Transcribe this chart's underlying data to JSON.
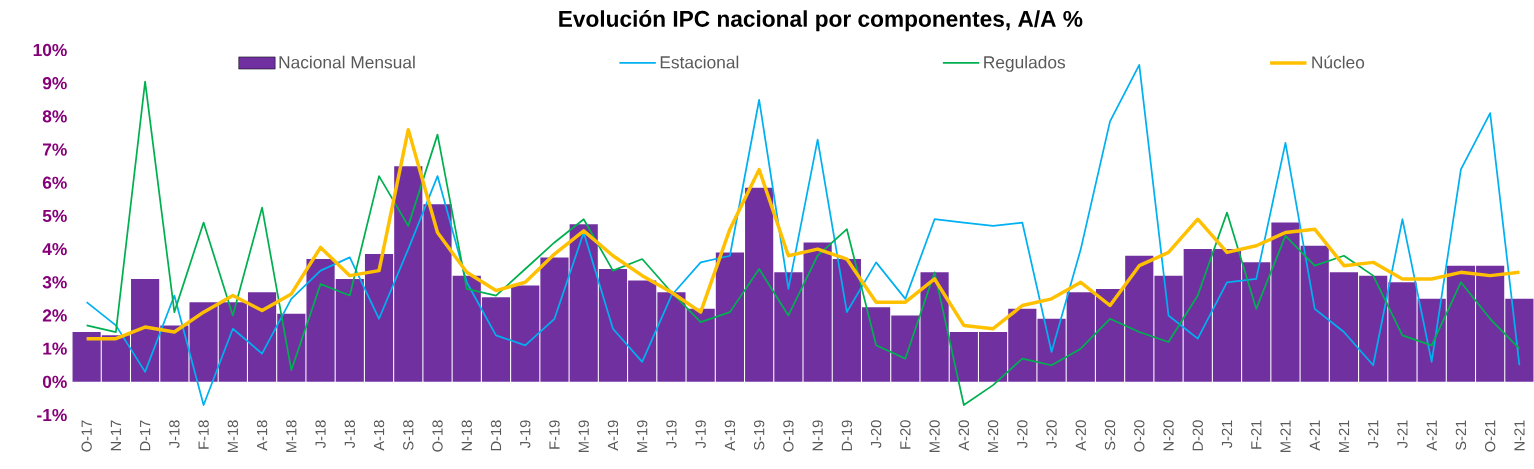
{
  "chart_data": {
    "type": "bar",
    "title": "Evolución IPC nacional por componentes, A/A %",
    "categories": [
      "O-17",
      "N-17",
      "D-17",
      "J-18",
      "F-18",
      "M-18",
      "A-18",
      "M-18",
      "J-18",
      "J-18",
      "A-18",
      "S-18",
      "O-18",
      "N-18",
      "D-18",
      "J-19",
      "F-19",
      "M-19",
      "A-19",
      "M-19",
      "J-19",
      "J-19",
      "A-19",
      "S-19",
      "O-19",
      "N-19",
      "D-19",
      "J-20",
      "F-20",
      "M-20",
      "A-20",
      "M-20",
      "J-20",
      "J-20",
      "A-20",
      "S-20",
      "O-20",
      "N-20",
      "D-20",
      "J-21",
      "F-21",
      "M-21",
      "A-21",
      "M-21",
      "J-21",
      "J-21",
      "A-21",
      "S-21",
      "O-21",
      "N-21"
    ],
    "series": [
      {
        "name": "Nacional Mensual",
        "color": "#7030a0",
        "values": [
          1.5,
          1.4,
          3.1,
          1.7,
          2.4,
          2.4,
          2.7,
          2.05,
          3.7,
          3.1,
          3.85,
          6.5,
          5.35,
          3.2,
          2.55,
          2.9,
          3.75,
          4.75,
          3.4,
          3.05,
          2.7,
          2.2,
          3.9,
          5.85,
          3.3,
          4.2,
          3.7,
          2.25,
          2.0,
          3.3,
          1.5,
          1.5,
          2.2,
          1.9,
          2.7,
          2.8,
          3.8,
          3.2,
          4.0,
          4.0,
          3.6,
          4.8,
          4.1,
          3.3,
          3.2,
          3.0,
          2.5,
          3.5,
          3.5,
          2.5
        ]
      },
      {
        "name": "Estacional",
        "type": "line",
        "color": "#00b0f0",
        "values": [
          2.4,
          1.7,
          0.3,
          2.6,
          -0.7,
          1.6,
          0.85,
          2.5,
          3.35,
          3.75,
          1.9,
          4.0,
          6.2,
          3.0,
          1.4,
          1.1,
          1.9,
          4.5,
          1.6,
          0.6,
          2.6,
          3.6,
          3.8,
          8.5,
          2.8,
          7.3,
          2.1,
          3.6,
          2.5,
          4.9,
          4.8,
          4.7,
          4.8,
          0.9,
          4.0,
          7.85,
          9.55,
          2.0,
          1.3,
          3.0,
          3.1,
          7.2,
          2.2,
          1.5,
          0.5,
          4.9,
          0.6,
          6.4,
          8.1,
          0.5
        ]
      },
      {
        "name": "Regulados",
        "type": "line",
        "color": "#00b050",
        "values": [
          1.7,
          1.5,
          9.05,
          2.1,
          4.8,
          2.0,
          5.25,
          0.35,
          2.95,
          2.6,
          6.2,
          4.7,
          7.45,
          2.8,
          2.6,
          3.4,
          4.2,
          4.9,
          3.35,
          3.7,
          2.7,
          1.8,
          2.1,
          3.4,
          2.0,
          3.8,
          4.6,
          1.1,
          0.7,
          3.3,
          -0.7,
          -0.1,
          0.7,
          0.5,
          1.0,
          1.9,
          1.5,
          1.2,
          2.6,
          5.1,
          2.2,
          4.4,
          3.5,
          3.8,
          3.2,
          1.4,
          1.1,
          3.0,
          1.9,
          1.0
        ]
      },
      {
        "name": "Núcleo",
        "type": "line",
        "color": "#ffc000",
        "values": [
          1.3,
          1.3,
          1.65,
          1.5,
          2.1,
          2.6,
          2.15,
          2.65,
          4.05,
          3.2,
          3.35,
          7.6,
          4.5,
          3.3,
          2.75,
          3.0,
          3.85,
          4.55,
          3.8,
          3.2,
          2.7,
          2.1,
          4.6,
          6.4,
          3.8,
          4.0,
          3.7,
          2.4,
          2.4,
          3.1,
          1.7,
          1.6,
          2.3,
          2.5,
          3.0,
          2.3,
          3.5,
          3.9,
          4.9,
          3.9,
          4.1,
          4.5,
          4.6,
          3.5,
          3.6,
          3.1,
          3.1,
          3.3,
          3.2,
          3.3
        ]
      }
    ],
    "ylim": [
      -1,
      10
    ],
    "yticks": [
      {
        "value": -1,
        "label": "-1%"
      },
      {
        "value": 0,
        "label": "0%"
      },
      {
        "value": 1,
        "label": "1%"
      },
      {
        "value": 2,
        "label": "2%"
      },
      {
        "value": 3,
        "label": "3%"
      },
      {
        "value": 4,
        "label": "4%"
      },
      {
        "value": 5,
        "label": "5%"
      },
      {
        "value": 6,
        "label": "6%"
      },
      {
        "value": 7,
        "label": "7%"
      },
      {
        "value": 8,
        "label": "8%"
      },
      {
        "value": 9,
        "label": "9%"
      },
      {
        "value": 10,
        "label": "10%"
      }
    ],
    "legend": "top",
    "grid": false
  }
}
